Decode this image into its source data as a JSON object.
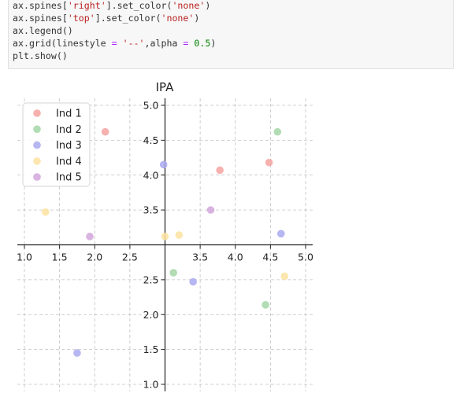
{
  "code_cell": {
    "lines": [
      [
        {
          "t": "ax.spines[",
          "c": ""
        },
        {
          "t": "'right'",
          "c": "str"
        },
        {
          "t": "].set_color(",
          "c": ""
        },
        {
          "t": "'none'",
          "c": "str"
        },
        {
          "t": ")",
          "c": ""
        }
      ],
      [
        {
          "t": "ax.spines[",
          "c": ""
        },
        {
          "t": "'top'",
          "c": "str"
        },
        {
          "t": "].set_color(",
          "c": ""
        },
        {
          "t": "'none'",
          "c": "str"
        },
        {
          "t": ")",
          "c": ""
        }
      ],
      [
        {
          "t": "ax.legend()",
          "c": ""
        }
      ],
      [
        {
          "t": "ax.grid(linestyle ",
          "c": ""
        },
        {
          "t": "=",
          "c": "op"
        },
        {
          "t": " ",
          "c": ""
        },
        {
          "t": "'--'",
          "c": "str"
        },
        {
          "t": ",alpha ",
          "c": ""
        },
        {
          "t": "=",
          "c": "op"
        },
        {
          "t": " ",
          "c": ""
        },
        {
          "t": "0.5",
          "c": "num"
        },
        {
          "t": ")",
          "c": ""
        }
      ],
      [
        {
          "t": "plt.show()",
          "c": ""
        }
      ]
    ]
  },
  "chart_data": {
    "type": "scatter",
    "title": "IPA",
    "xlabel": "",
    "ylabel": "",
    "xlim": [
      0.9,
      5.1
    ],
    "ylim": [
      0.9,
      5.1
    ],
    "xticks": [
      "1.0",
      "1.5",
      "2.0",
      "2.5",
      "3.5",
      "4.0",
      "4.5",
      "5.0"
    ],
    "xtick_values": [
      1.0,
      1.5,
      2.0,
      2.5,
      3.5,
      4.0,
      4.5,
      5.0
    ],
    "yticks": [
      "5.0",
      "4.5",
      "4.0",
      "3.5",
      "2.5",
      "2.0",
      "1.5",
      "1.0"
    ],
    "ytick_values": [
      5.0,
      4.5,
      4.0,
      3.5,
      2.5,
      2.0,
      1.5,
      1.0
    ],
    "spines_cross_at": [
      3.0,
      3.0
    ],
    "grid": true,
    "legend_position": "top-left",
    "series": [
      {
        "name": "Ind 1",
        "color": "#f4a3a0",
        "points": [
          [
            2.15,
            4.62
          ],
          [
            3.78,
            4.07
          ],
          [
            4.48,
            4.18
          ]
        ]
      },
      {
        "name": "Ind 2",
        "color": "#a5d6a7",
        "points": [
          [
            4.6,
            4.62
          ],
          [
            3.12,
            2.6
          ],
          [
            4.43,
            2.14
          ]
        ]
      },
      {
        "name": "Ind 3",
        "color": "#a9a9f0",
        "points": [
          [
            2.98,
            4.15
          ],
          [
            4.65,
            3.16
          ],
          [
            3.4,
            2.47
          ],
          [
            1.75,
            1.45
          ]
        ]
      },
      {
        "name": "Ind 4",
        "color": "#fde3a1",
        "points": [
          [
            1.3,
            3.47
          ],
          [
            3.0,
            3.12
          ],
          [
            3.2,
            3.14
          ],
          [
            4.7,
            2.55
          ]
        ]
      },
      {
        "name": "Ind 5",
        "color": "#d2a6dc",
        "points": [
          [
            1.93,
            3.12
          ],
          [
            3.65,
            3.5
          ]
        ]
      }
    ]
  }
}
